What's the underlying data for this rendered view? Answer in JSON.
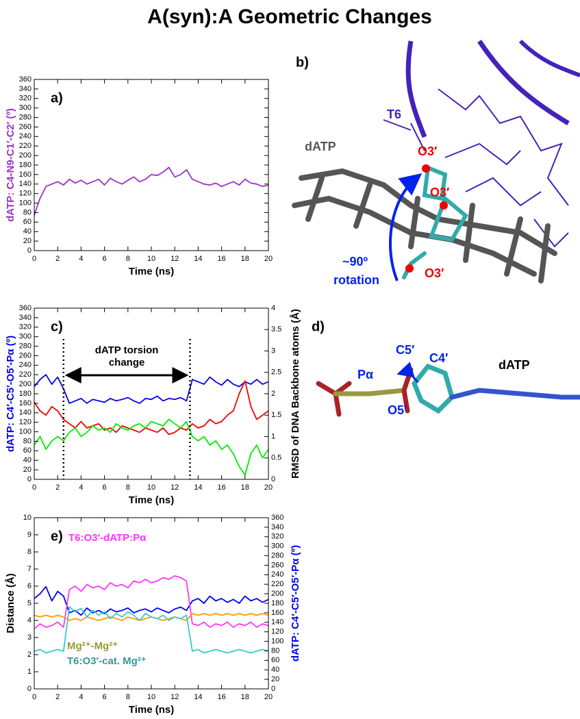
{
  "title": "A(syn):A Geometric Changes",
  "chart_data": [
    {
      "type": "line",
      "panel_label": "a)",
      "xlabel": "Time (ns)",
      "ylabel": "dATP: C4-N9-C1′-C2′ (º)",
      "ylabel_color": "#9933cc",
      "x": [
        0,
        0.5,
        1,
        1.5,
        2,
        2.5,
        3,
        3.5,
        4,
        4.5,
        5,
        5.5,
        6,
        6.5,
        7,
        7.5,
        8,
        8.5,
        9,
        9.5,
        10,
        10.5,
        11,
        11.5,
        12,
        12.5,
        13,
        13.5,
        14,
        14.5,
        15,
        15.5,
        16,
        16.5,
        17,
        17.5,
        18,
        18.5,
        19,
        19.5,
        20
      ],
      "xlim": [
        0,
        20
      ],
      "xticks": [
        0,
        2,
        4,
        6,
        8,
        10,
        12,
        14,
        16,
        18,
        20
      ],
      "ylim": [
        0,
        360
      ],
      "yticks": [
        0,
        20,
        40,
        60,
        80,
        100,
        120,
        140,
        160,
        180,
        200,
        220,
        240,
        260,
        280,
        300,
        320,
        340,
        360
      ],
      "series": [
        {
          "color": "#9933cc",
          "values": [
            75,
            110,
            135,
            140,
            145,
            138,
            150,
            142,
            148,
            140,
            145,
            150,
            138,
            152,
            145,
            140,
            148,
            155,
            145,
            150,
            160,
            158,
            165,
            175,
            155,
            160,
            170,
            150,
            145,
            140,
            138,
            142,
            135,
            140,
            145,
            138,
            150,
            142,
            140,
            135,
            138
          ]
        }
      ]
    },
    {
      "type": "line",
      "panel_label": "c)",
      "xlabel": "Time (ns)",
      "ylabel": "dATP: C4′-C5′-O5′-Pα (º)",
      "ylabel_color": "#0000ee",
      "y2label": "RMSD of DNA Backbone atoms (Å)",
      "annotation": [
        "dATP torsion",
        "change"
      ],
      "marker_lines": [
        2.5,
        13.3
      ],
      "x": [
        0,
        0.5,
        1,
        1.5,
        2,
        2.5,
        3,
        3.5,
        4,
        4.5,
        5,
        5.5,
        6,
        6.5,
        7,
        7.5,
        8,
        8.5,
        9,
        9.5,
        10,
        10.5,
        11,
        11.5,
        12,
        12.5,
        13,
        13.5,
        14,
        14.5,
        15,
        15.5,
        16,
        16.5,
        17,
        17.5,
        18,
        18.5,
        19,
        19.5,
        20
      ],
      "xlim": [
        0,
        20
      ],
      "xticks": [
        0,
        2,
        4,
        6,
        8,
        10,
        12,
        14,
        16,
        18,
        20
      ],
      "ylim": [
        0,
        360
      ],
      "yticks": [
        0,
        20,
        40,
        60,
        80,
        100,
        120,
        140,
        160,
        180,
        200,
        220,
        240,
        260,
        280,
        300,
        320,
        340,
        360
      ],
      "y2lim": [
        0,
        4
      ],
      "y2ticks": [
        0,
        0.5,
        1,
        1.5,
        2,
        2.5,
        3,
        3.5,
        4
      ],
      "series": [
        {
          "color": "#0000ee",
          "values": [
            195,
            210,
            220,
            200,
            215,
            190,
            160,
            165,
            170,
            160,
            168,
            165,
            162,
            170,
            165,
            168,
            172,
            165,
            160,
            170,
            168,
            175,
            165,
            170,
            168,
            172,
            165,
            210,
            205,
            200,
            215,
            205,
            198,
            210,
            200,
            195,
            205,
            200,
            210,
            200,
            205
          ]
        },
        {
          "color": "#ee0000",
          "axis": "y2",
          "values": [
            1.8,
            1.6,
            1.5,
            1.7,
            1.6,
            1.4,
            1.3,
            1.2,
            1.35,
            1.2,
            1.25,
            1.3,
            1.15,
            1.2,
            1.1,
            1.25,
            1.2,
            1.15,
            1.1,
            1.2,
            1.15,
            1.1,
            1.2,
            1.05,
            1.1,
            1.2,
            1.15,
            1.3,
            1.2,
            1.25,
            1.4,
            1.3,
            1.35,
            1.5,
            1.6,
            2.0,
            2.3,
            1.7,
            1.4,
            1.5,
            1.6
          ]
        },
        {
          "color": "#00ee00",
          "axis": "y2",
          "values": [
            0.8,
            1.0,
            0.7,
            0.9,
            1.0,
            0.9,
            1.1,
            1.2,
            1.0,
            1.1,
            1.25,
            1.15,
            1.2,
            1.1,
            1.3,
            1.2,
            1.15,
            1.25,
            1.3,
            1.2,
            1.35,
            1.3,
            1.25,
            1.4,
            1.3,
            1.2,
            1.35,
            1.0,
            0.9,
            1.0,
            0.8,
            0.9,
            0.7,
            0.8,
            0.6,
            0.3,
            0.1,
            0.6,
            0.8,
            0.5,
            0.7
          ]
        }
      ]
    },
    {
      "type": "line",
      "panel_label": "e)",
      "xlabel": "Time (ns)",
      "ylabel": "Distance (Å)",
      "ylabel_color": "#000000",
      "y2label": "dATP: C4′-C5′-O5′-Pα (º)",
      "y2label_color": "#0000ee",
      "x": [
        0,
        0.5,
        1,
        1.5,
        2,
        2.5,
        3,
        3.5,
        4,
        4.5,
        5,
        5.5,
        6,
        6.5,
        7,
        7.5,
        8,
        8.5,
        9,
        9.5,
        10,
        10.5,
        11,
        11.5,
        12,
        12.5,
        13,
        13.5,
        14,
        14.5,
        15,
        15.5,
        16,
        16.5,
        17,
        17.5,
        18,
        18.5,
        19,
        19.5,
        20
      ],
      "xlim": [
        0,
        20
      ],
      "xticks": [
        0,
        2,
        4,
        6,
        8,
        10,
        12,
        14,
        16,
        18,
        20
      ],
      "ylim": [
        0,
        10
      ],
      "yticks": [
        0,
        1,
        2,
        3,
        4,
        5,
        6,
        7,
        8,
        9,
        10
      ],
      "y2lim": [
        0,
        360
      ],
      "y2ticks": [
        0,
        20,
        40,
        60,
        80,
        100,
        120,
        140,
        160,
        180,
        200,
        220,
        240,
        260,
        280,
        300,
        320,
        340,
        360
      ],
      "series": [
        {
          "color": "#0000ee",
          "axis": "y2",
          "values": [
            190,
            200,
            215,
            185,
            205,
            195,
            160,
            165,
            155,
            170,
            160,
            165,
            158,
            168,
            162,
            165,
            170,
            160,
            165,
            168,
            162,
            170,
            165,
            160,
            168,
            172,
            165,
            185,
            190,
            180,
            195,
            185,
            190,
            182,
            188,
            180,
            195,
            185,
            190,
            182,
            188
          ]
        },
        {
          "name": "T6:O3′-dATP:Pα",
          "color": "#ff33ff",
          "label_color": "#ff33ff",
          "values": [
            3.5,
            3.8,
            3.6,
            3.7,
            3.9,
            3.6,
            5.8,
            6.0,
            5.7,
            6.1,
            5.9,
            6.0,
            5.8,
            6.2,
            6.0,
            6.1,
            5.9,
            6.3,
            6.2,
            6.4,
            6.2,
            6.3,
            6.5,
            6.4,
            6.6,
            6.5,
            6.3,
            3.8,
            3.7,
            3.9,
            3.6,
            3.8,
            3.7,
            3.9,
            3.6,
            3.8,
            3.7,
            3.9,
            3.6,
            3.8,
            3.7
          ]
        },
        {
          "name": "Mg²⁺-Mg²⁺",
          "color": "#ff9900",
          "label_color": "#999933",
          "values": [
            4.3,
            4.2,
            4.3,
            4.2,
            4.3,
            4.2,
            4.0,
            4.1,
            4.0,
            4.2,
            4.1,
            4.0,
            4.1,
            4.2,
            4.1,
            4.0,
            4.2,
            4.1,
            4.0,
            4.1,
            4.2,
            4.1,
            4.0,
            4.1,
            4.2,
            4.1,
            4.0,
            4.4,
            4.3,
            4.4,
            4.3,
            4.4,
            4.3,
            4.4,
            4.3,
            4.4,
            4.3,
            4.4,
            4.3,
            4.4,
            4.3
          ]
        },
        {
          "name": "T6:O3′-cat. Mg²⁺",
          "color": "#33cccc",
          "label_color": "#339999",
          "values": [
            2.2,
            2.3,
            2.1,
            2.2,
            2.3,
            2.2,
            4.8,
            4.5,
            4.7,
            4.2,
            4.6,
            4.3,
            4.5,
            4.1,
            4.4,
            4.2,
            4.5,
            4.3,
            4.0,
            4.4,
            4.2,
            4.1,
            4.3,
            4.0,
            4.2,
            4.1,
            4.3,
            2.2,
            2.3,
            2.1,
            2.2,
            2.3,
            2.2,
            2.1,
            2.2,
            2.3,
            2.2,
            2.1,
            2.2,
            2.3,
            2.2
          ]
        }
      ]
    }
  ],
  "panels": {
    "b": {
      "label": "b)",
      "texts": [
        "T6",
        "dATP",
        "O3′",
        "O3′",
        "O3′",
        "~90º",
        "rotation"
      ]
    },
    "d": {
      "label": "d)",
      "texts": [
        "C5′",
        "C4′",
        "Pα",
        "O5′",
        "dATP"
      ]
    }
  }
}
